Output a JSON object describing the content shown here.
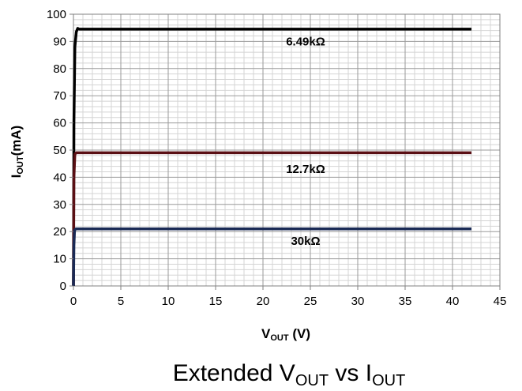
{
  "chart_data": {
    "type": "line",
    "title": "",
    "caption": {
      "main": "Extended V",
      "sub1": "OUT",
      "mid": " vs I",
      "sub2": "OUT"
    },
    "xlabel": {
      "main": "V",
      "sub": "OUT",
      "suffix": " (V)"
    },
    "ylabel": {
      "main": "I",
      "sub": "OUT",
      "suffix": "(mA)"
    },
    "xlim": [
      0,
      45
    ],
    "ylim": [
      0,
      100
    ],
    "xticks": [
      0,
      5,
      10,
      15,
      20,
      25,
      30,
      35,
      40,
      45
    ],
    "yticks": [
      0,
      10,
      20,
      30,
      40,
      50,
      60,
      70,
      80,
      90,
      100
    ],
    "grid": true,
    "series": [
      {
        "name": "6.49kΩ",
        "color": "#000000",
        "x": [
          0,
          0.05,
          0.15,
          0.3,
          0.45,
          0.6,
          1,
          42
        ],
        "y": [
          0,
          60,
          88,
          93.5,
          94.8,
          94.5,
          94.5,
          94.5
        ],
        "label_at": [
          22,
          90
        ]
      },
      {
        "name": "12.7kΩ",
        "color": "#5a0f14",
        "x": [
          0,
          0.05,
          0.15,
          0.3,
          42
        ],
        "y": [
          0,
          40,
          48.5,
          49,
          49
        ],
        "label_at": [
          22,
          43
        ]
      },
      {
        "name": "30kΩ",
        "color": "#1a2a55",
        "x": [
          0,
          0.05,
          0.12,
          0.25,
          42
        ],
        "y": [
          0,
          15,
          20.5,
          21,
          21
        ],
        "label_at": [
          22,
          16.5
        ]
      }
    ]
  }
}
